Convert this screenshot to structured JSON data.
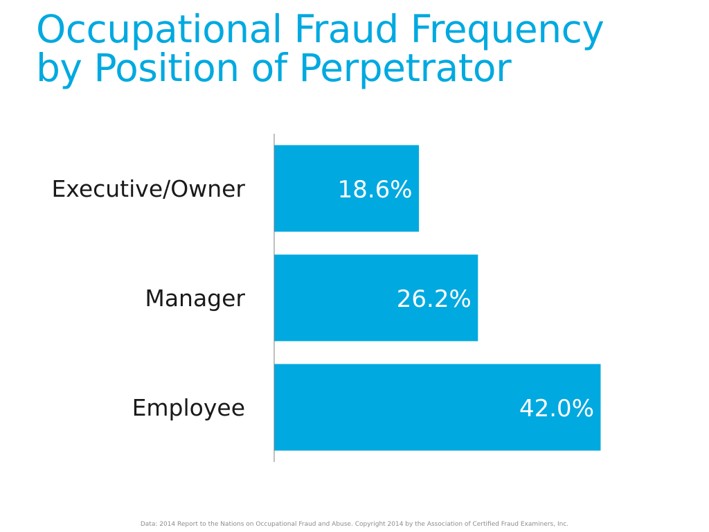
{
  "slide": {
    "title_line1": "Occupational Fraud Frequency",
    "title_line2": "by Position of Perpetrator",
    "source": "Data: 2014 Report to the Nations on Occupational Fraud and Abuse. Copyright 2014 by the Association of Certified Fraud Examiners, Inc."
  },
  "colors": {
    "accent": "#00a9e0",
    "bar_label": "#ffffff",
    "category_label": "#1a1a1a",
    "axis": "#7f7f7f"
  },
  "chart_data": {
    "type": "bar",
    "orientation": "horizontal",
    "categories": [
      "Executive/Owner",
      "Manager",
      "Employee"
    ],
    "values": [
      18.6,
      26.2,
      42.0
    ],
    "value_labels": [
      "18.6%",
      "26.2%",
      "42.0%"
    ],
    "unit": "%",
    "xlim": [
      0,
      42.0
    ],
    "grid": false,
    "legend": "none",
    "data_labels": "inside-end"
  }
}
